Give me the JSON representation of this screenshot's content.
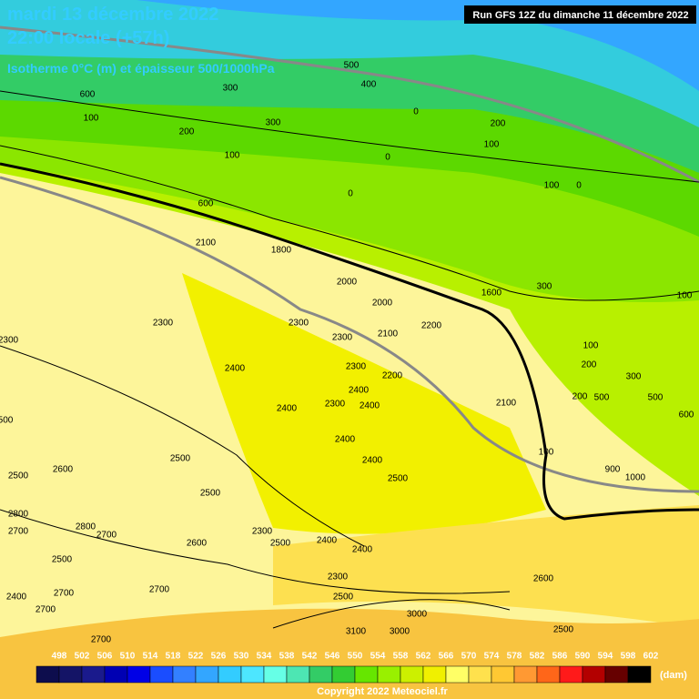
{
  "header": {
    "title": "mardi 13 décembre 2022",
    "subtitle": "22:00 locale (+57h)",
    "parameter": "Isotherme 0°C (m) et épaisseur 500/1000hPa",
    "run": "Run GFS 12Z du dimanche 11 décembre 2022"
  },
  "legend": {
    "values": [
      498,
      502,
      506,
      510,
      514,
      518,
      522,
      526,
      530,
      534,
      538,
      542,
      546,
      550,
      554,
      558,
      562,
      566,
      570,
      574,
      578,
      582,
      586,
      590,
      594,
      598,
      602
    ],
    "colors": [
      "#0d0d4d",
      "#141466",
      "#1a1a8c",
      "#0000b3",
      "#0000e6",
      "#1a4dff",
      "#3380ff",
      "#33a6ff",
      "#33ccff",
      "#4de6ff",
      "#66ffe6",
      "#4de6b3",
      "#33cc66",
      "#33cc33",
      "#66e600",
      "#99f000",
      "#ccf000",
      "#f0f000",
      "#ffff66",
      "#ffe14d",
      "#ffc833",
      "#ff9933",
      "#ff6619",
      "#ff1a1a",
      "#b30000",
      "#660000",
      "#000000"
    ],
    "unit": "(dam)"
  },
  "contour_labels": [
    100,
    200,
    300,
    400,
    500,
    300,
    600,
    100,
    0,
    200,
    100,
    100,
    0,
    0,
    0,
    600,
    2100,
    1800,
    2000,
    2000,
    2200,
    2100,
    2300,
    2300,
    2300,
    2300,
    2400,
    2300,
    2200,
    2400,
    2300,
    2400,
    2400,
    2400,
    2400,
    2500,
    2500,
    2500,
    2600,
    2500,
    2800,
    2700,
    2800,
    2700,
    2600,
    2300,
    2500,
    2400,
    2400,
    2300,
    2500,
    2500,
    2700,
    2700,
    2400,
    2700,
    2700,
    3100,
    3000,
    3000,
    2600,
    2500,
    2100,
    100,
    200,
    500,
    500,
    600,
    900,
    1000,
    100,
    200,
    300,
    300,
    100,
    1600,
    500
  ],
  "copyright": "Copyright 2022 Meteociel.fr"
}
